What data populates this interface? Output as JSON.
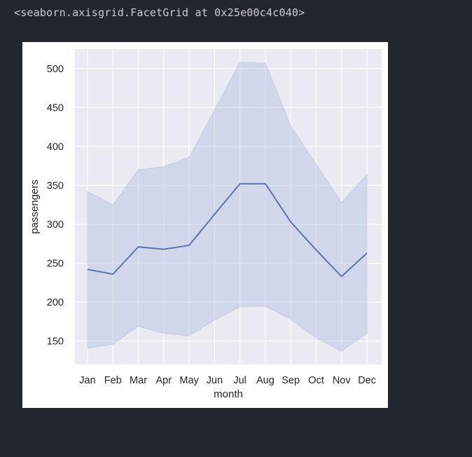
{
  "output": {
    "repr_text": "<seaborn.axisgrid.FacetGrid at 0x25e00c4c040>"
  },
  "colors": {
    "page_background": "#22262d",
    "figure_background": "#ffffff",
    "axes_background": "#eaeaf2",
    "grid": "#ffffff",
    "line": "#5875ae",
    "band": "#b4c0e0"
  },
  "chart_data": {
    "type": "line",
    "title": "",
    "xlabel": "month",
    "ylabel": "passengers",
    "categories": [
      "Jan",
      "Feb",
      "Mar",
      "Apr",
      "May",
      "Jun",
      "Jul",
      "Aug",
      "Sep",
      "Oct",
      "Nov",
      "Dec"
    ],
    "series": [
      {
        "values": [
          242,
          236,
          271,
          268,
          273,
          313,
          352,
          352,
          303,
          267,
          233,
          263
        ],
        "ci_lower": [
          141,
          146,
          169,
          160,
          157,
          177,
          194,
          195,
          178,
          154,
          137,
          160
        ],
        "ci_upper": [
          342,
          325,
          370,
          374,
          386,
          447,
          508,
          507,
          426,
          377,
          328,
          364
        ]
      }
    ],
    "yticks": [
      150,
      200,
      250,
      300,
      350,
      400,
      450,
      500
    ],
    "ylim": [
      120,
      525
    ],
    "grid": true,
    "legend": "none"
  }
}
